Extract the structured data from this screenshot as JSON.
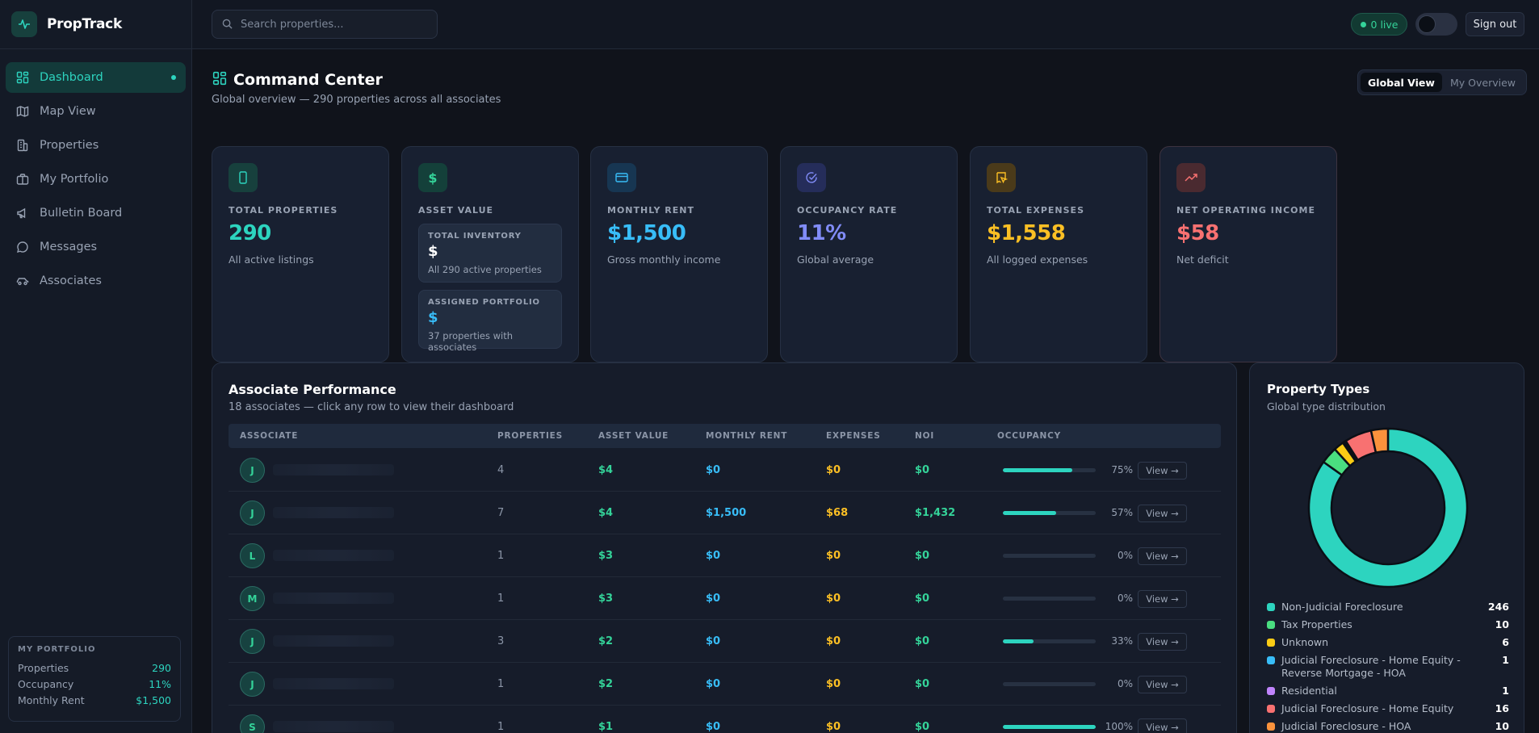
{
  "brand": {
    "name": "PropTrack"
  },
  "sidebar": {
    "items": [
      {
        "label": "Dashboard",
        "icon": "dashboard-icon",
        "active": true
      },
      {
        "label": "Map View",
        "icon": "map-icon"
      },
      {
        "label": "Properties",
        "icon": "building-icon"
      },
      {
        "label": "My Portfolio",
        "icon": "briefcase-icon"
      },
      {
        "label": "Bulletin Board",
        "icon": "megaphone-icon"
      },
      {
        "label": "Messages",
        "icon": "chat-icon"
      },
      {
        "label": "Associates",
        "icon": "car-icon"
      }
    ],
    "portfolio": {
      "title": "MY PORTFOLIO",
      "rows": [
        {
          "label": "Properties",
          "value": "290"
        },
        {
          "label": "Occupancy",
          "value": "11%"
        },
        {
          "label": "Monthly Rent",
          "value": "$1,500"
        }
      ]
    }
  },
  "topbar": {
    "search_placeholder": "Search properties...",
    "live_label": "0 live",
    "signout_label": "Sign out"
  },
  "header": {
    "title": "Command Center",
    "subtitle": "Global overview — 290 properties across all associates",
    "views": [
      "Global View",
      "My Overview"
    ],
    "selected_view": "Global View"
  },
  "cards": [
    {
      "label": "TOTAL PROPERTIES",
      "value": "290",
      "sub": "All active listings",
      "color": "#2dd4bf",
      "icon": "phone-icon"
    },
    {
      "label": "ASSET VALUE",
      "color": "#34d399",
      "icon": "dollar-icon",
      "inventory": {
        "label": "TOTAL INVENTORY",
        "value": "$",
        "sub": "All 290 active properties"
      },
      "assigned": {
        "label": "ASSIGNED PORTFOLIO",
        "value": "$",
        "sub": "37 properties with associates"
      }
    },
    {
      "label": "MONTHLY RENT",
      "value": "$1,500",
      "sub": "Gross monthly income",
      "color": "#38bdf8",
      "icon": "card-icon"
    },
    {
      "label": "OCCUPANCY RATE",
      "value": "11%",
      "sub": "Global average",
      "color": "#818cf8",
      "icon": "check-circle-icon"
    },
    {
      "label": "TOTAL EXPENSES",
      "value": "$1,558",
      "sub": "All logged expenses",
      "color": "#fbbf24",
      "icon": "receipt-icon"
    },
    {
      "label": "NET OPERATING INCOME",
      "value": "$58",
      "sub": "Net deficit",
      "color": "#f87171",
      "icon": "trend-up-icon"
    }
  ],
  "associates": {
    "title": "Associate Performance",
    "subtitle": "18 associates — click any row to view their dashboard",
    "columns": [
      "ASSOCIATE",
      "PROPERTIES",
      "ASSET VALUE",
      "MONTHLY RENT",
      "EXPENSES",
      "NOI",
      "OCCUPANCY"
    ],
    "view_label": "View →",
    "rows": [
      {
        "initial": "J",
        "properties": "4",
        "asset": "$4",
        "rent": "$0",
        "expenses": "$0",
        "noi": "$0",
        "occupancy": 75,
        "occupancy_label": "75%"
      },
      {
        "initial": "J",
        "properties": "7",
        "asset": "$4",
        "rent": "$1,500",
        "expenses": "$68",
        "noi": "$1,432",
        "occupancy": 57,
        "occupancy_label": "57%"
      },
      {
        "initial": "L",
        "properties": "1",
        "asset": "$3",
        "rent": "$0",
        "expenses": "$0",
        "noi": "$0",
        "occupancy": 0,
        "occupancy_label": "0%"
      },
      {
        "initial": "M",
        "properties": "1",
        "asset": "$3",
        "rent": "$0",
        "expenses": "$0",
        "noi": "$0",
        "occupancy": 0,
        "occupancy_label": "0%"
      },
      {
        "initial": "J",
        "properties": "3",
        "asset": "$2",
        "rent": "$0",
        "expenses": "$0",
        "noi": "$0",
        "occupancy": 33,
        "occupancy_label": "33%"
      },
      {
        "initial": "J",
        "properties": "1",
        "asset": "$2",
        "rent": "$0",
        "expenses": "$0",
        "noi": "$0",
        "occupancy": 0,
        "occupancy_label": "0%"
      },
      {
        "initial": "S",
        "properties": "1",
        "asset": "$1",
        "rent": "$0",
        "expenses": "$0",
        "noi": "$0",
        "occupancy": 100,
        "occupancy_label": "100%"
      }
    ]
  },
  "property_types": {
    "title": "Property Types",
    "subtitle": "Global type distribution",
    "items": [
      {
        "name": "Non-Judicial Foreclosure",
        "count": 246,
        "color": "#2dd4bf"
      },
      {
        "name": "Tax Properties",
        "count": 10,
        "color": "#4ade80"
      },
      {
        "name": "Unknown",
        "count": 6,
        "color": "#facc15"
      },
      {
        "name": "Judicial Foreclosure - Home Equity - Reverse Mortgage - HOA",
        "count": 1,
        "color": "#38bdf8"
      },
      {
        "name": "Residential",
        "count": 1,
        "color": "#c084fc"
      },
      {
        "name": "Judicial Foreclosure - Home Equity",
        "count": 16,
        "color": "#f87171"
      },
      {
        "name": "Judicial Foreclosure - HOA",
        "count": 10,
        "color": "#fb923c"
      }
    ]
  }
}
